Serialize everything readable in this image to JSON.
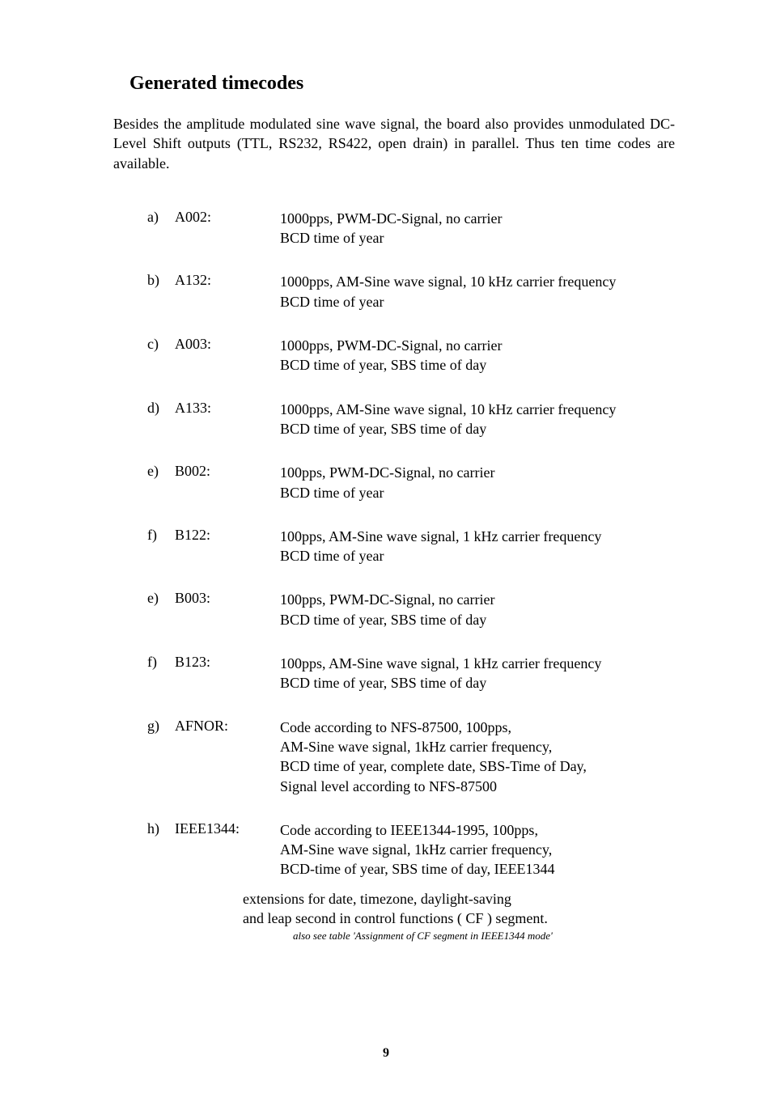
{
  "heading": "Generated timecodes",
  "intro": "Besides the amplitude modulated sine wave signal, the board also provides unmodulated DC-Level Shift outputs (TTL, RS232, RS422, open drain) in parallel. Thus ten time codes are available.",
  "items": [
    {
      "letter": "a)",
      "code": "A002:",
      "desc": "1000pps, PWM-DC-Signal, no carrier\nBCD time of year"
    },
    {
      "letter": "b)",
      "code": "A132:",
      "desc": "1000pps, AM-Sine wave signal, 10 kHz carrier frequency\nBCD time of year"
    },
    {
      "letter": "c)",
      "code": "A003:",
      "desc": "1000pps, PWM-DC-Signal, no carrier\nBCD time of year, SBS time of day"
    },
    {
      "letter": "d)",
      "code": "A133:",
      "desc": "1000pps, AM-Sine wave signal, 10 kHz carrier frequency\nBCD time of year, SBS time of day"
    },
    {
      "letter": "e)",
      "code": "B002:",
      "desc": "100pps, PWM-DC-Signal, no carrier\nBCD time of year"
    },
    {
      "letter": "f)",
      "code": "B122:",
      "desc": "100pps, AM-Sine wave signal, 1 kHz carrier frequency\nBCD time of year"
    },
    {
      "letter": "e)",
      "code": "B003:",
      "desc": "100pps, PWM-DC-Signal, no carrier\nBCD time of year, SBS time of day"
    },
    {
      "letter": "f)",
      "code": "B123:",
      "desc": "100pps, AM-Sine wave signal, 1 kHz carrier frequency\nBCD time of year, SBS time of day"
    },
    {
      "letter": "g)",
      "code": "AFNOR:",
      "desc": "Code according to NFS-87500, 100pps,\nAM-Sine wave signal, 1kHz carrier frequency,\nBCD time of year, complete date, SBS-Time of Day,\nSignal level according to NFS-87500"
    },
    {
      "letter": "h)",
      "code": "IEEE1344:",
      "desc": "Code according to IEEE1344-1995, 100pps,\nAM-Sine wave signal, 1kHz carrier frequency,\nBCD-time of year, SBS time of day, IEEE1344",
      "continuation": "extensions for date, timezone, daylight-saving\nand leap second in control functions ( CF ) segment."
    }
  ],
  "footnote": "also see table 'Assignment of CF segment in IEEE1344 mode'",
  "pageNumber": "9"
}
